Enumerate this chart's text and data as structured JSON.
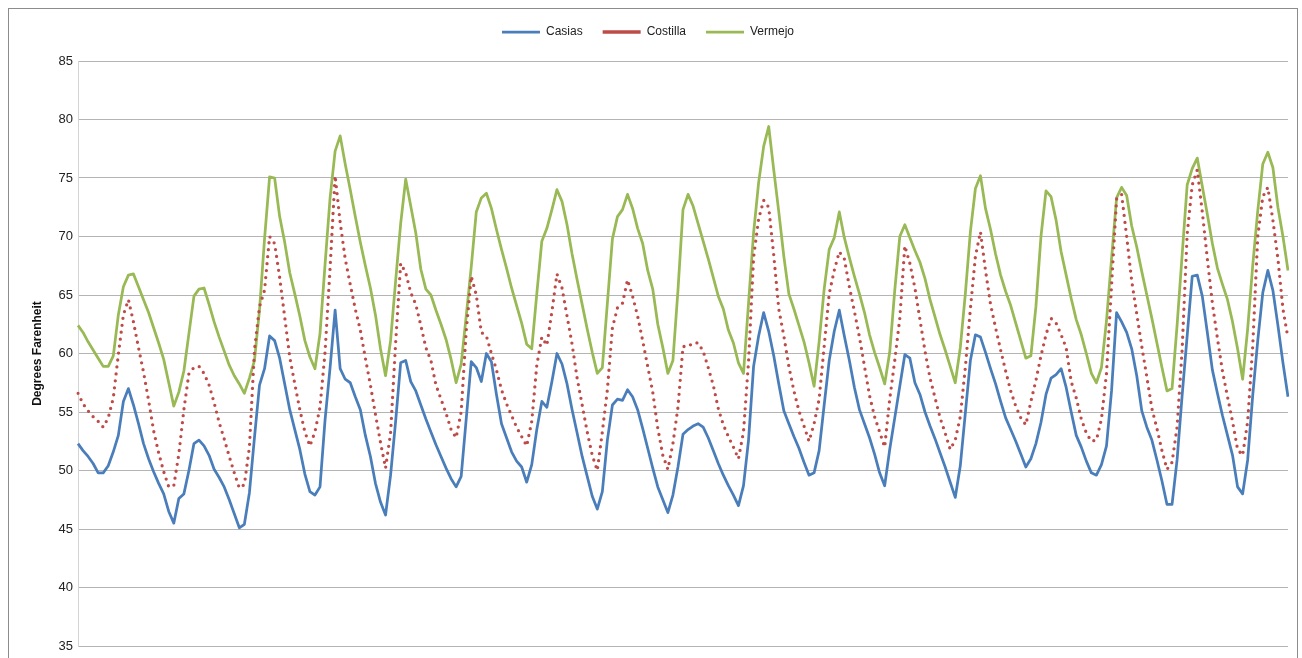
{
  "chart_data": {
    "type": "line",
    "ylabel": "Degrees Farenheit",
    "legend": "top",
    "grid": "y",
    "tick_labels": "y",
    "line_style": "solid",
    "ylim": [
      35,
      85
    ],
    "yticks": [
      35,
      40,
      45,
      50,
      55,
      60,
      65,
      70,
      75,
      80,
      85
    ],
    "categories": [
      null,
      null,
      null,
      null,
      null,
      null,
      null,
      null,
      null,
      null,
      null,
      null,
      null,
      null,
      null,
      null,
      null,
      null,
      null,
      null,
      null,
      null,
      null,
      null,
      null,
      null,
      null,
      null,
      null,
      null,
      null,
      null,
      null,
      null,
      null,
      null,
      null,
      null,
      null,
      null,
      null,
      null,
      null,
      null,
      null,
      null,
      null,
      null,
      null,
      null,
      null,
      null,
      null,
      null,
      null,
      null,
      null,
      null,
      null,
      null,
      null,
      null,
      null,
      null,
      null,
      null,
      null,
      null,
      null,
      null,
      null,
      null,
      null,
      null,
      null,
      null,
      null,
      null,
      null,
      null,
      null,
      null,
      null,
      null,
      null,
      null,
      null,
      null,
      null,
      null,
      null,
      null,
      null,
      null,
      null,
      null,
      null,
      null,
      null,
      null,
      null,
      null,
      null,
      null,
      null,
      null,
      null,
      null,
      null,
      null,
      null,
      null,
      null,
      null,
      null,
      null,
      null,
      null,
      null,
      null,
      null,
      null,
      null,
      null,
      null,
      null,
      null,
      null,
      null,
      null,
      null,
      null,
      null,
      null,
      null,
      null,
      null,
      null,
      null,
      null,
      null,
      null,
      null,
      null,
      null,
      null,
      null,
      null,
      null,
      null,
      null,
      null,
      null,
      null,
      null,
      null,
      null,
      null,
      null,
      null,
      null,
      null,
      null,
      null,
      null,
      null,
      null,
      null,
      null,
      null,
      null,
      null,
      null,
      null,
      null,
      null,
      null,
      null,
      null,
      null,
      null,
      null,
      null,
      null,
      null,
      null,
      null,
      null,
      null,
      null,
      null,
      null,
      null,
      null,
      null,
      null,
      null,
      null,
      null,
      null,
      null,
      null,
      null,
      null,
      null,
      null,
      null,
      null,
      null,
      null,
      null,
      null,
      null,
      null,
      null,
      null,
      null,
      null,
      null,
      null,
      null,
      null,
      null,
      null,
      null,
      null,
      null,
      null,
      null,
      null,
      null,
      null,
      null,
      null,
      null,
      null,
      null,
      null,
      null,
      null,
      null
    ],
    "series": [
      {
        "name": "Casias",
        "color": "#4a7ebb",
        "values": [
          52.3,
          51.7,
          51.2,
          50.6,
          49.8,
          49.8,
          50.4,
          51.6,
          53.0,
          55.9,
          57.0,
          55.6,
          54.0,
          52.3,
          51.0,
          49.9,
          48.9,
          48.0,
          46.5,
          45.5,
          47.6,
          48.0,
          50.0,
          52.3,
          52.6,
          52.1,
          51.3,
          50.1,
          49.4,
          48.6,
          47.5,
          46.3,
          45.1,
          45.4,
          48.1,
          52.8,
          57.3,
          58.7,
          61.5,
          61.1,
          59.6,
          57.4,
          55.2,
          53.5,
          51.8,
          49.7,
          48.2,
          47.9,
          48.6,
          54.3,
          58.8,
          63.7,
          58.7,
          57.8,
          57.5,
          56.3,
          55.2,
          53.0,
          51.2,
          48.9,
          47.3,
          46.2,
          49.6,
          54.2,
          59.2,
          59.4,
          57.6,
          56.8,
          55.6,
          54.4,
          53.3,
          52.2,
          51.2,
          50.2,
          49.3,
          48.6,
          49.5,
          54.4,
          59.3,
          58.8,
          57.6,
          60.0,
          59.3,
          56.5,
          54.0,
          52.8,
          51.6,
          50.8,
          50.3,
          49.0,
          50.5,
          53.5,
          55.9,
          55.4,
          57.6,
          60.0,
          59.1,
          57.4,
          55.2,
          53.2,
          51.2,
          49.5,
          47.8,
          46.7,
          48.2,
          52.6,
          55.6,
          56.1,
          56.0,
          56.9,
          56.3,
          55.2,
          53.6,
          51.9,
          50.2,
          48.6,
          47.5,
          46.4,
          47.9,
          50.3,
          53.1,
          53.5,
          53.8,
          54.0,
          53.7,
          52.8,
          51.7,
          50.6,
          49.6,
          48.7,
          47.9,
          47.0,
          48.7,
          52.6,
          58.9,
          61.5,
          63.5,
          61.9,
          59.8,
          57.4,
          55.1,
          54.0,
          52.9,
          51.9,
          50.7,
          49.6,
          49.8,
          51.7,
          55.6,
          59.4,
          61.9,
          63.7,
          61.5,
          59.4,
          57.1,
          55.2,
          54.0,
          52.8,
          51.4,
          49.8,
          48.7,
          51.8,
          54.5,
          57.2,
          59.9,
          59.6,
          57.5,
          56.5,
          55.0,
          53.8,
          52.7,
          51.5,
          50.3,
          49.0,
          47.7,
          50.4,
          54.9,
          59.4,
          61.6,
          61.4,
          60.1,
          58.7,
          57.4,
          55.9,
          54.5,
          53.5,
          52.5,
          51.4,
          50.3,
          51.0,
          52.3,
          54.1,
          56.5,
          57.9,
          58.2,
          58.7,
          57.1,
          55.0,
          53.0,
          52.0,
          50.8,
          49.8,
          49.6,
          50.5,
          52.1,
          56.8,
          63.5,
          62.7,
          61.8,
          60.4,
          58.1,
          55.1,
          53.7,
          52.6,
          50.9,
          49.1,
          47.1,
          47.1,
          50.9,
          56.4,
          61.5,
          66.6,
          66.7,
          64.9,
          61.8,
          58.6,
          56.6,
          54.7,
          53.0,
          51.3,
          48.6,
          48.0,
          50.9,
          56.4,
          61.1,
          65.2,
          67.1,
          65.4,
          62.4,
          59.2,
          56.3
        ]
      },
      {
        "name": "Costilla",
        "color": "#be4b48",
        "line_style": "dotted",
        "values": [
          56.6,
          55.7,
          55.1,
          54.6,
          54.2,
          53.7,
          54.5,
          56.2,
          59.9,
          63.3,
          64.6,
          62.7,
          60.5,
          58.4,
          56.0,
          53.4,
          51.5,
          49.9,
          48.6,
          48.7,
          51.4,
          55.2,
          58.3,
          58.8,
          58.9,
          58.3,
          57.3,
          55.8,
          54.1,
          52.7,
          51.2,
          49.8,
          48.5,
          48.8,
          52.0,
          60.3,
          64.0,
          65.4,
          70.0,
          69.4,
          66.5,
          63.1,
          59.7,
          57.4,
          55.2,
          53.3,
          52.1,
          53.3,
          55.4,
          60.1,
          67.3,
          75.2,
          71.2,
          68.1,
          65.9,
          63.8,
          62.0,
          59.6,
          57.3,
          54.8,
          52.4,
          50.2,
          53.2,
          60.9,
          67.7,
          66.9,
          65.2,
          64.2,
          62.4,
          60.5,
          59.4,
          57.3,
          56.1,
          54.9,
          53.5,
          52.8,
          55.0,
          61.9,
          66.6,
          65.0,
          61.8,
          61.5,
          60.0,
          58.6,
          56.9,
          55.7,
          54.7,
          53.7,
          52.9,
          52.1,
          54.2,
          59.0,
          61.4,
          60.7,
          63.6,
          66.8,
          65.6,
          63.2,
          60.8,
          57.9,
          55.6,
          53.3,
          51.3,
          50.0,
          53.3,
          56.9,
          62.2,
          63.9,
          64.3,
          66.3,
          64.9,
          63.2,
          61.1,
          58.9,
          56.7,
          53.6,
          51.3,
          50.1,
          52.3,
          55.4,
          60.6,
          60.6,
          60.9,
          60.9,
          60.2,
          58.8,
          57.3,
          55.3,
          53.9,
          52.9,
          52.0,
          51.0,
          53.3,
          59.3,
          68.2,
          71.5,
          73.1,
          72.5,
          68.4,
          63.8,
          61.5,
          58.9,
          56.8,
          55.1,
          53.8,
          52.5,
          54.0,
          56.1,
          60.6,
          65.1,
          67.1,
          68.7,
          68.1,
          65.7,
          63.6,
          61.4,
          58.9,
          56.4,
          54.6,
          53.3,
          52.0,
          56.1,
          59.4,
          63.0,
          69.2,
          67.7,
          65.6,
          62.9,
          60.2,
          57.9,
          56.2,
          54.5,
          53.2,
          51.8,
          52.6,
          54.6,
          58.8,
          63.8,
          68.3,
          70.4,
          67.1,
          64.2,
          62.2,
          60.3,
          58.5,
          56.8,
          55.5,
          54.5,
          53.9,
          55.9,
          57.7,
          59.8,
          61.6,
          63.0,
          62.6,
          61.6,
          60.5,
          57.6,
          56.2,
          54.4,
          53.2,
          52.5,
          52.6,
          54.4,
          58.3,
          65.8,
          73.2,
          73.6,
          70.0,
          66.2,
          63.4,
          60.6,
          58.0,
          55.3,
          53.6,
          51.7,
          50.1,
          50.7,
          53.7,
          60.3,
          70.2,
          74.4,
          75.7,
          72.1,
          68.1,
          64.3,
          61.3,
          58.5,
          56.3,
          54.2,
          51.8,
          51.3,
          54.2,
          60.6,
          70.0,
          73.4,
          74.2,
          71.4,
          68.1,
          63.8,
          61.3
        ]
      },
      {
        "name": "Vermejo",
        "color": "#98b954",
        "values": [
          62.4,
          61.8,
          61.0,
          60.3,
          59.6,
          58.9,
          58.9,
          59.8,
          63.3,
          65.7,
          66.7,
          66.8,
          65.7,
          64.6,
          63.5,
          62.2,
          60.9,
          59.5,
          57.5,
          55.5,
          56.7,
          58.5,
          61.7,
          64.9,
          65.5,
          65.6,
          64.2,
          62.7,
          61.4,
          60.2,
          59.0,
          58.1,
          57.4,
          56.6,
          57.9,
          59.4,
          63.7,
          69.8,
          75.1,
          75.0,
          71.7,
          69.5,
          66.9,
          65.1,
          63.2,
          61.1,
          59.7,
          58.7,
          61.7,
          67.6,
          73.3,
          77.3,
          78.6,
          76.2,
          74.0,
          71.7,
          69.5,
          67.5,
          65.6,
          63.3,
          60.4,
          58.1,
          61.1,
          66.2,
          71.1,
          74.9,
          72.6,
          70.3,
          67.2,
          65.5,
          65.0,
          63.7,
          62.5,
          61.2,
          59.5,
          57.5,
          59.1,
          63.2,
          67.4,
          72.1,
          73.3,
          73.7,
          72.4,
          70.6,
          68.9,
          67.3,
          65.6,
          64.1,
          62.6,
          60.8,
          60.4,
          65.1,
          69.6,
          70.7,
          72.3,
          74.0,
          73.0,
          71.0,
          68.5,
          66.3,
          64.2,
          62.1,
          60.1,
          58.3,
          58.8,
          64.3,
          69.8,
          71.7,
          72.3,
          73.6,
          72.4,
          70.7,
          69.4,
          67.1,
          65.5,
          62.5,
          60.5,
          58.3,
          59.4,
          65.4,
          72.3,
          73.6,
          72.6,
          71.1,
          69.6,
          68.1,
          66.5,
          64.9,
          63.8,
          62.0,
          60.9,
          59.2,
          58.3,
          64.3,
          70.3,
          74.6,
          77.7,
          79.4,
          75.7,
          72.1,
          68.3,
          65.1,
          63.8,
          62.4,
          61.0,
          59.2,
          57.2,
          61.0,
          65.5,
          68.9,
          69.9,
          72.1,
          69.9,
          68.2,
          66.6,
          65.1,
          63.5,
          61.6,
          60.1,
          58.8,
          57.4,
          60.1,
          65.4,
          70.0,
          71.0,
          69.9,
          68.8,
          67.8,
          66.4,
          64.6,
          63.1,
          61.6,
          60.3,
          58.9,
          57.5,
          60.5,
          65.1,
          70.4,
          74.1,
          75.2,
          72.4,
          70.6,
          68.5,
          66.7,
          65.3,
          64.1,
          62.6,
          61.1,
          59.6,
          59.8,
          64.0,
          70.0,
          73.9,
          73.4,
          71.4,
          68.7,
          66.7,
          64.7,
          62.9,
          61.6,
          60.0,
          58.3,
          57.5,
          58.8,
          62.8,
          68.1,
          73.3,
          74.2,
          73.5,
          70.9,
          69.1,
          67.0,
          65.0,
          63.0,
          60.9,
          58.8,
          56.8,
          57.0,
          62.4,
          68.4,
          74.4,
          75.8,
          76.7,
          74.3,
          71.9,
          69.4,
          67.3,
          65.9,
          64.6,
          62.7,
          60.4,
          57.8,
          62.1,
          67.5,
          72.2,
          76.2,
          77.2,
          75.9,
          72.5,
          70.0,
          67.1
        ]
      }
    ]
  }
}
